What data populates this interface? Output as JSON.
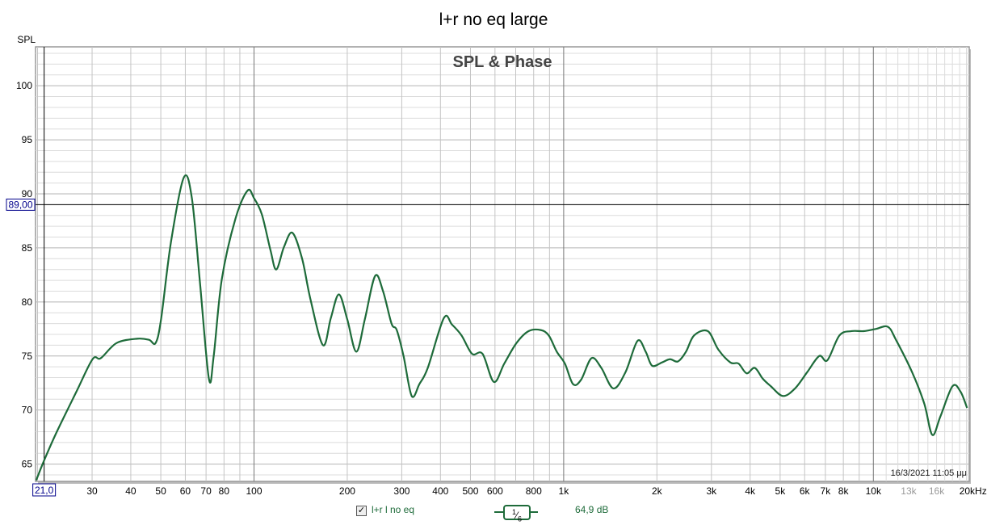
{
  "window_title": "l+r no eq large",
  "chart_data": {
    "type": "line",
    "title": "l+r no eq large",
    "subtitle": "SPL & Phase",
    "ylabel": "SPL",
    "xlabel": "Hz",
    "xscale": "log",
    "xlim": [
      19.7,
      20400
    ],
    "ylim": [
      63.4,
      103.6
    ],
    "grid": true,
    "y_ticks": [
      65,
      70,
      75,
      80,
      85,
      90,
      95,
      100
    ],
    "x_ticks": [
      {
        "v": 30,
        "label": "30"
      },
      {
        "v": 40,
        "label": "40"
      },
      {
        "v": 50,
        "label": "50"
      },
      {
        "v": 60,
        "label": "60"
      },
      {
        "v": 70,
        "label": "70"
      },
      {
        "v": 80,
        "label": "80"
      },
      {
        "v": 100,
        "label": "100"
      },
      {
        "v": 200,
        "label": "200"
      },
      {
        "v": 300,
        "label": "300"
      },
      {
        "v": 400,
        "label": "400"
      },
      {
        "v": 500,
        "label": "500"
      },
      {
        "v": 600,
        "label": "600"
      },
      {
        "v": 800,
        "label": "800"
      },
      {
        "v": 1000,
        "label": "1k"
      },
      {
        "v": 2000,
        "label": "2k"
      },
      {
        "v": 3000,
        "label": "3k"
      },
      {
        "v": 4000,
        "label": "4k"
      },
      {
        "v": 5000,
        "label": "5k"
      },
      {
        "v": 6000,
        "label": "6k"
      },
      {
        "v": 7000,
        "label": "7k"
      },
      {
        "v": 8000,
        "label": "8k"
      },
      {
        "v": 10000,
        "label": "10k"
      },
      {
        "v": 13000,
        "label": "13k",
        "muted": true
      },
      {
        "v": 16000,
        "label": "16k",
        "muted": true
      },
      {
        "v": 20000,
        "label": "20kHz"
      }
    ],
    "cursor": {
      "x": 21.0,
      "x_label": "21,0",
      "y": 89.0,
      "y_label": "89,00"
    },
    "timestamp": "16/3/2021 11:05 μμ",
    "series": [
      {
        "name": "l+r l no eq",
        "color": "#1e6b3a",
        "smoothing": "1/6",
        "smoothing_num": "1",
        "smoothing_den": "6",
        "offset_label": "64,9 dB",
        "visible": true,
        "x": [
          19.8,
          20.9,
          23.0,
          26.7,
          30.1,
          32.0,
          36.0,
          41.9,
          45.8,
          48.1,
          50.1,
          53.9,
          59.3,
          63.0,
          66.9,
          71.5,
          74.1,
          78.7,
          87.1,
          95.3,
          100,
          106,
          113,
          118,
          125,
          133,
          143,
          152,
          167,
          177,
          188,
          200,
          214,
          228,
          246,
          261,
          278,
          289,
          304,
          323,
          342,
          364,
          410,
          436,
          468,
          506,
          547,
          595,
          643,
          704,
          770,
          843,
          895,
          950,
          1009,
          1072,
          1138,
          1230,
          1323,
          1447,
          1583,
          1732,
          1840,
          1930,
          2075,
          2203,
          2339,
          2483,
          2637,
          2920,
          3157,
          3455,
          3669,
          3896,
          4139,
          4395,
          4667,
          5105,
          5586,
          6113,
          6688,
          7102,
          7771,
          8506,
          9305,
          10180,
          11140,
          11830,
          13340,
          14600,
          15500,
          16460,
          18010,
          19120,
          20070
        ],
        "y": [
          63.5,
          65.2,
          67.9,
          71.7,
          74.7,
          74.8,
          76.2,
          76.6,
          76.5,
          76.2,
          78.4,
          85.5,
          91.5,
          89.6,
          81.8,
          72.9,
          75.0,
          82.1,
          87.7,
          90.3,
          89.6,
          88.1,
          84.8,
          83.0,
          85.1,
          86.4,
          84.0,
          80.3,
          76.0,
          78.5,
          80.7,
          78.4,
          75.4,
          78.4,
          82.4,
          81.0,
          78.0,
          77.4,
          75.0,
          71.3,
          72.4,
          73.9,
          78.5,
          77.9,
          76.9,
          75.2,
          75.2,
          72.6,
          74.3,
          76.2,
          77.3,
          77.4,
          76.9,
          75.4,
          74.3,
          72.4,
          72.8,
          74.8,
          73.9,
          72.0,
          73.5,
          76.4,
          75.4,
          74.1,
          74.4,
          74.7,
          74.5,
          75.4,
          76.9,
          77.3,
          75.6,
          74.4,
          74.3,
          73.4,
          73.9,
          72.9,
          72.2,
          71.3,
          72.0,
          73.5,
          75.0,
          74.6,
          76.9,
          77.3,
          77.3,
          77.5,
          77.7,
          76.5,
          73.5,
          70.6,
          67.7,
          69.4,
          72.2,
          71.7,
          70.2
        ]
      }
    ]
  }
}
